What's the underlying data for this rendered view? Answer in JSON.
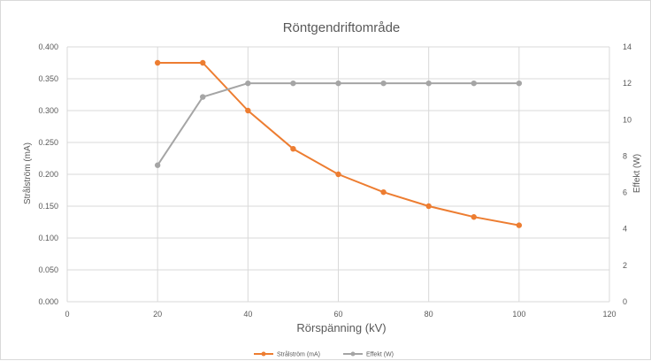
{
  "chart_data": {
    "type": "line",
    "title": "Röntgendriftområde",
    "xlabel": "Rörspänning (kV)",
    "ylabel_left": "Strålström (mA)",
    "ylabel_right": "Effekt (W)",
    "xlim": [
      0,
      120
    ],
    "x_ticks": [
      "0",
      "20",
      "40",
      "60",
      "80",
      "100",
      "120"
    ],
    "ylim_left": [
      0,
      0.4
    ],
    "y_ticks_left": [
      "0.000",
      "0.050",
      "0.100",
      "0.150",
      "0.200",
      "0.250",
      "0.300",
      "0.350",
      "0.400"
    ],
    "ylim_right": [
      0,
      14
    ],
    "y_ticks_right": [
      "0",
      "2",
      "4",
      "6",
      "8",
      "10",
      "12",
      "14"
    ],
    "grid": true,
    "legend_position": "bottom",
    "series": [
      {
        "name": "Strålström (mA)",
        "axis": "left",
        "color": "#ed7d31",
        "x": [
          20,
          30,
          40,
          50,
          60,
          70,
          80,
          90,
          100
        ],
        "y": [
          0.375,
          0.375,
          0.3,
          0.24,
          0.2,
          0.172,
          0.15,
          0.133,
          0.12
        ]
      },
      {
        "name": "Effekt (W)",
        "axis": "right",
        "color": "#a5a5a5",
        "x": [
          20,
          30,
          40,
          50,
          60,
          70,
          80,
          90,
          100
        ],
        "y": [
          7.5,
          11.25,
          12,
          12,
          12,
          12,
          12,
          12,
          12
        ]
      }
    ]
  }
}
